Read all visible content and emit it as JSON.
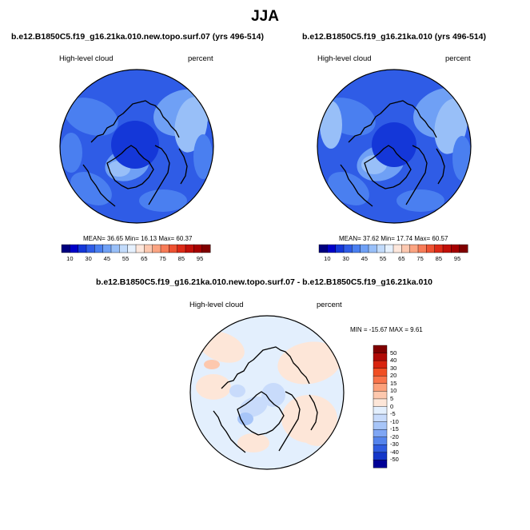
{
  "title": "JJA",
  "panels": [
    {
      "id": "a",
      "title": "b.e12.B1850C5.f19_g16.21ka.010.new.topo.surf.07 (yrs 496-514)",
      "left_label": "High-level cloud",
      "right_label": "percent",
      "mean_label": "MEAN=",
      "mean": "36.65",
      "min_label": "Min=",
      "min": "16.13",
      "max_label": "Max=",
      "max": "60.37"
    },
    {
      "id": "b",
      "title": "b.e12.B1850C5.f19_g16.21ka.010 (yrs 496-514)",
      "left_label": "High-level cloud",
      "right_label": "percent",
      "mean_label": "MEAN=",
      "mean": "37.62",
      "min_label": "Min=",
      "min": "17.74",
      "max_label": "Max=",
      "max": "60.57"
    },
    {
      "id": "diff",
      "title": "b.e12.B1850C5.f19_g16.21ka.010.new.topo.surf.07 - b.e12.B1850C5.f19_g16.21ka.010",
      "left_label": "High-level cloud",
      "right_label": "percent",
      "minmax_label": "MIN = -15.67  MAX =   9.61"
    }
  ],
  "colorbar_top": {
    "ticks": [
      "10",
      "30",
      "45",
      "55",
      "65",
      "75",
      "85",
      "95"
    ],
    "tick_values": [
      10,
      30,
      45,
      55,
      65,
      75,
      85,
      95
    ],
    "colors": [
      "#00007f",
      "#0000c8",
      "#1437d8",
      "#2f5ce6",
      "#4a7ff0",
      "#6fa0f5",
      "#98bff8",
      "#c2dbfb",
      "#e6f1fe",
      "#fde7dc",
      "#fcc8b0",
      "#fba482",
      "#f77c58",
      "#ee5232",
      "#dc2a17",
      "#c10f08",
      "#a50000",
      "#800000"
    ]
  },
  "colorbar_diff": {
    "labels": [
      "50",
      "40",
      "30",
      "20",
      "15",
      "10",
      "5",
      "0",
      "-5",
      "-10",
      "-15",
      "-20",
      "-30",
      "-40",
      "-50"
    ],
    "colors": [
      "#800000",
      "#b00a06",
      "#d8230f",
      "#f04f24",
      "#f9734a",
      "#fca07a",
      "#fdc8ae",
      "#fde6d8",
      "#e3effd",
      "#c8dbfb",
      "#a7c5f8",
      "#7fa6f4",
      "#5584ec",
      "#2f5ce0",
      "#1437c9",
      "#000096"
    ]
  },
  "chart_data": [
    {
      "type": "heatmap",
      "title": "b.e12.B1850C5.f19_g16.21ka.010.new.topo.surf.07 (yrs 496-514)",
      "variable": "High-level cloud",
      "units": "percent",
      "projection": "polar stereographic (north pole)",
      "stats": {
        "mean": 36.65,
        "min": 16.13,
        "max": 60.37
      },
      "colorbar_levels": [
        10,
        30,
        45,
        55,
        65,
        75,
        85,
        95
      ],
      "field_sample_rings": [
        40,
        35,
        33,
        30,
        28,
        36
      ]
    },
    {
      "type": "heatmap",
      "title": "b.e12.B1850C5.f19_g16.21ka.010 (yrs 496-514)",
      "variable": "High-level cloud",
      "units": "percent",
      "projection": "polar stereographic (north pole)",
      "stats": {
        "mean": 37.62,
        "min": 17.74,
        "max": 60.57
      },
      "colorbar_levels": [
        10,
        30,
        45,
        55,
        65,
        75,
        85,
        95
      ],
      "field_sample_rings": [
        41,
        36,
        34,
        31,
        29,
        37
      ]
    },
    {
      "type": "heatmap",
      "title": "b.e12.B1850C5.f19_g16.21ka.010.new.topo.surf.07 - b.e12.B1850C5.f19_g16.21ka.010",
      "variable": "High-level cloud",
      "units": "percent",
      "projection": "polar stereographic (north pole)",
      "stats": {
        "min": -15.67,
        "max": 9.61
      },
      "colorbar_levels": [
        -50,
        -40,
        -30,
        -20,
        -15,
        -10,
        -5,
        0,
        5,
        10,
        15,
        20,
        30,
        40,
        50
      ],
      "field_sample_rings": [
        -1,
        1,
        -2,
        1,
        -1,
        2
      ]
    }
  ]
}
